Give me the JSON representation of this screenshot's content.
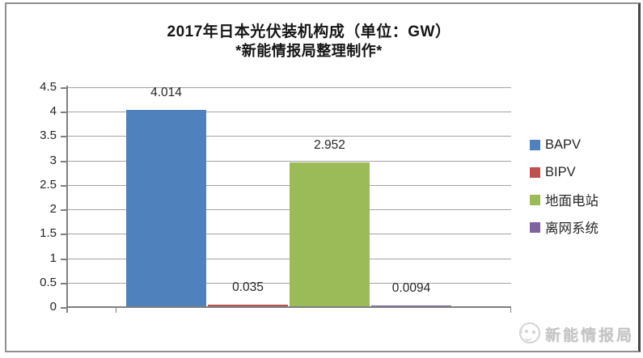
{
  "chart_data": {
    "type": "bar",
    "title": "2017年日本光伏装机构成（单位：GW）",
    "subtitle": "*新能情报局整理制作*",
    "categories": [
      "BAPV",
      "BIPV",
      "地面电站",
      "离网系统"
    ],
    "values": [
      4.014,
      0.035,
      2.952,
      0.0094
    ],
    "value_labels": [
      "4.014",
      "0.035",
      "2.952",
      "0.0094"
    ],
    "bar_colors": [
      "#4F81BD",
      "#C0504D",
      "#9BBB59",
      "#8064A2"
    ],
    "xlabel": "",
    "ylabel": "",
    "ylim": [
      0,
      4.5
    ],
    "ytick_step": 0.5,
    "yticks": [
      "0",
      "0.5",
      "1",
      "1.5",
      "2",
      "2.5",
      "3",
      "3.5",
      "4",
      "4.5"
    ],
    "grid": true,
    "legend_position": "right",
    "legend": [
      {
        "label": "BAPV",
        "color": "#4F81BD"
      },
      {
        "label": "BIPV",
        "color": "#C0504D"
      },
      {
        "label": "地面电站",
        "color": "#9BBB59"
      },
      {
        "label": "离网系统",
        "color": "#8064A2"
      }
    ]
  },
  "colors": {
    "gridline": "#a3a3a3",
    "axis": "#7f7f7f",
    "text": "#262626",
    "watermark": "#c3c3c3"
  },
  "watermark": {
    "text": "新能情报局",
    "icon": "bird-circle-logo-icon"
  }
}
